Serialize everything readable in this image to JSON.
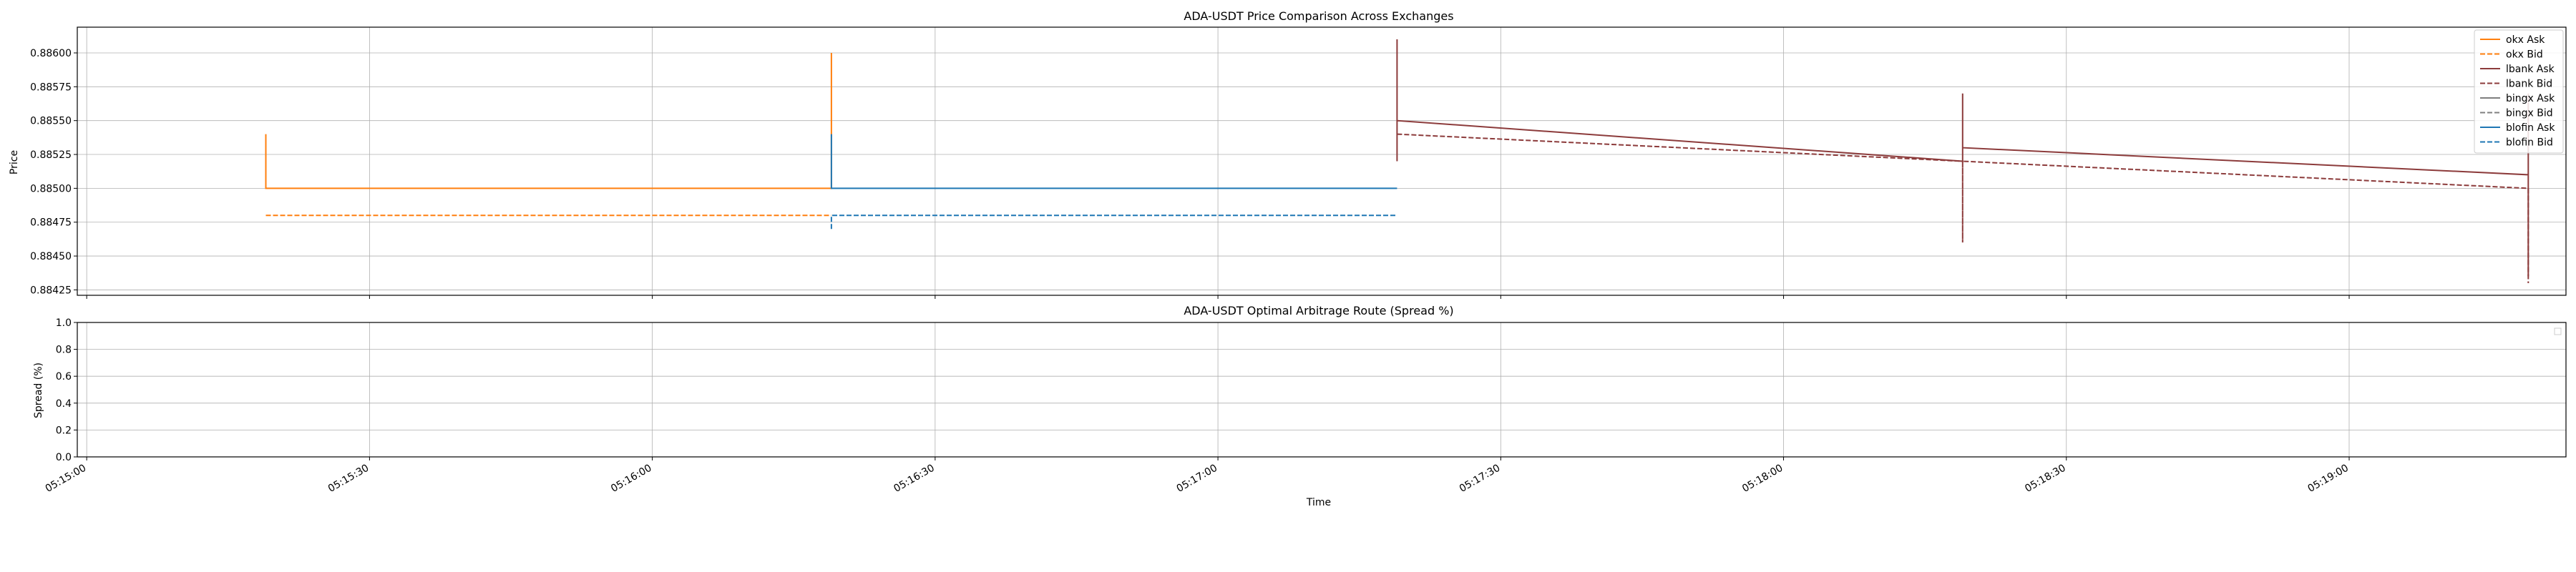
{
  "chart_data": [
    {
      "type": "line",
      "title": "ADA-USDT Price Comparison Across Exchanges",
      "xlabel": "",
      "ylabel": "Price",
      "ylim": [
        0.88421,
        0.88619
      ],
      "yticks": [
        0.88425,
        0.8845,
        0.88475,
        0.885,
        0.88525,
        0.8855,
        0.88575,
        0.886
      ],
      "ytick_labels": [
        "0.88425",
        "0.88450",
        "0.88475",
        "0.88500",
        "0.88525",
        "0.88550",
        "0.88575",
        "0.88600"
      ],
      "grid": true,
      "legend_position": "top-right",
      "series": [
        {
          "name": "okx Ask",
          "color": "#ff7f0e",
          "dash": "solid",
          "points": [
            [
              "05:15:19",
              0.8854
            ],
            [
              "05:15:19",
              0.885
            ],
            [
              "05:16:19",
              0.885
            ],
            [
              "05:16:19",
              0.886
            ],
            [
              "05:16:19",
              0.885
            ]
          ]
        },
        {
          "name": "okx Bid",
          "color": "#ff7f0e",
          "dash": "dashed",
          "points": [
            [
              "05:15:19",
              0.8848
            ],
            [
              "05:16:19",
              0.8848
            ]
          ]
        },
        {
          "name": "lbank Ask",
          "color": "#8c3b3b",
          "dash": "solid",
          "points": [
            [
              "05:17:19",
              0.8852
            ],
            [
              "05:17:19",
              0.8861
            ],
            [
              "05:17:19",
              0.8855
            ],
            [
              "05:18:19",
              0.8852
            ],
            [
              "05:18:19",
              0.8857
            ],
            [
              "05:18:19",
              0.8853
            ],
            [
              "05:19:19",
              0.8851
            ],
            [
              "05:19:19",
              0.8857
            ],
            [
              "05:19:19",
              0.88435
            ]
          ]
        },
        {
          "name": "lbank Bid",
          "color": "#8c3b3b",
          "dash": "dashed",
          "points": [
            [
              "05:17:19",
              0.8854
            ],
            [
              "05:18:19",
              0.8852
            ],
            [
              "05:18:19",
              0.8846
            ],
            [
              "05:18:19",
              0.8852
            ],
            [
              "05:19:19",
              0.885
            ],
            [
              "05:19:19",
              0.8843
            ]
          ]
        },
        {
          "name": "bingx Ask",
          "color": "#7f7f7f",
          "dash": "solid",
          "points": []
        },
        {
          "name": "bingx Bid",
          "color": "#7f7f7f",
          "dash": "dashed",
          "points": []
        },
        {
          "name": "blofin Ask",
          "color": "#1f77b4",
          "dash": "solid",
          "points": [
            [
              "05:16:19",
              0.8854
            ],
            [
              "05:16:19",
              0.885
            ],
            [
              "05:17:19",
              0.885
            ]
          ]
        },
        {
          "name": "blofin Bid",
          "color": "#1f77b4",
          "dash": "dashed",
          "points": [
            [
              "05:16:19",
              0.8847
            ],
            [
              "05:16:19",
              0.8848
            ],
            [
              "05:17:19",
              0.8848
            ]
          ]
        }
      ]
    },
    {
      "type": "line",
      "title": "ADA-USDT Optimal Arbitrage Route (Spread %)",
      "xlabel": "Time",
      "ylabel": "Spread (%)",
      "ylim": [
        0.0,
        1.0
      ],
      "yticks": [
        0.0,
        0.2,
        0.4,
        0.6,
        0.8,
        1.0
      ],
      "ytick_labels": [
        "0.0",
        "0.2",
        "0.4",
        "0.6",
        "0.8",
        "1.0"
      ],
      "grid": true,
      "legend_position": "top-right",
      "series": []
    }
  ],
  "shared_x": {
    "xlim": [
      "05:14:59",
      "05:19:23"
    ],
    "xticks": [
      "05:15:00",
      "05:15:30",
      "05:16:00",
      "05:16:30",
      "05:17:00",
      "05:17:30",
      "05:18:00",
      "05:18:30",
      "05:19:00"
    ],
    "xtick_labels": [
      "05:15:00",
      "05:15:30",
      "05:16:00",
      "05:16:30",
      "05:17:00",
      "05:17:30",
      "05:18:00",
      "05:18:30",
      "05:19:00"
    ]
  }
}
